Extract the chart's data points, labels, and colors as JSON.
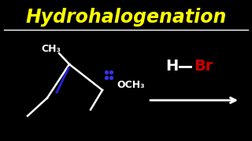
{
  "background_color": "#000000",
  "title": "Hydrohalogenation",
  "title_color": "#FFFF00",
  "title_fontsize": 17,
  "separator_color": "#FFFFFF",
  "molecule_color": "#FFFFFF",
  "double_bond_color": "#2222DD",
  "hbr_h_color": "#FFFFFF",
  "hbr_br_color": "#CC0000",
  "arrow_color": "#FFFFFF",
  "dots_color": "#3333EE",
  "ch3_label": "CH₃",
  "och3_label": "OCH₃",
  "h_label": "H",
  "br_label": "Br"
}
